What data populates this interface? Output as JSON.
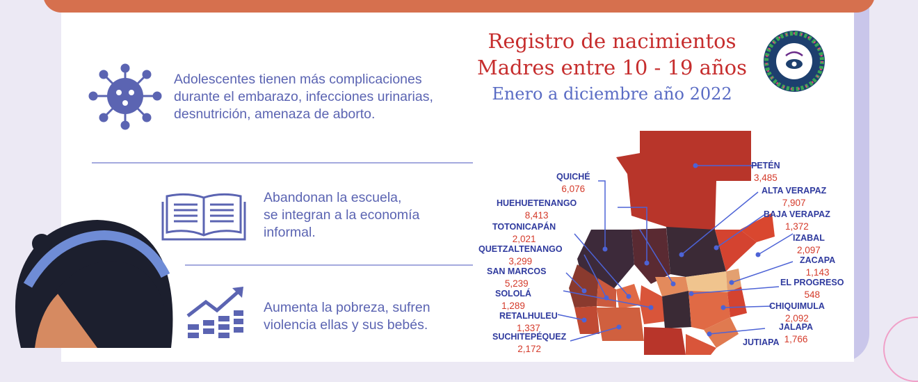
{
  "title": {
    "line1": "Registro de nacimientos",
    "line2": "Madres entre 10 - 19 años",
    "line3": "Enero a diciembre año 2022"
  },
  "logo": {
    "name": "observatorio-logo",
    "text": "Observatorio Salud Reproductiva"
  },
  "facts": [
    {
      "icon": "virus-icon",
      "text_lines": [
        "Adolescentes tienen más complicaciones",
        "durante el embarazo, infecciones urinarias,",
        "desnutrición, amenaza de aborto."
      ]
    },
    {
      "icon": "book-icon",
      "text_lines": [
        "Abandonan la escuela,",
        "se integran a la economía",
        "informal."
      ]
    },
    {
      "icon": "growth-chart-icon",
      "text_lines": [
        "Aumenta la pobreza, sufren",
        "violencia ellas y sus bebés."
      ]
    }
  ],
  "departments": [
    {
      "name": "PETÉN",
      "value": "3,485"
    },
    {
      "name": "QUICHÉ",
      "value": "6,076"
    },
    {
      "name": "ALTA VERAPAZ",
      "value": "7,907"
    },
    {
      "name": "HUEHUETENANGO",
      "value": "8,413"
    },
    {
      "name": "BAJA VERAPAZ",
      "value": "1,372"
    },
    {
      "name": "TOTONICAPÁN",
      "value": "2,021"
    },
    {
      "name": "IZABAL",
      "value": "2,097"
    },
    {
      "name": "QUETZALTENANGO",
      "value": "3,299"
    },
    {
      "name": "ZACAPA",
      "value": "1,143"
    },
    {
      "name": "SAN MARCOS",
      "value": "5,239"
    },
    {
      "name": "EL PROGRESO",
      "value": "548"
    },
    {
      "name": "SOLOLÁ",
      "value": "1,289"
    },
    {
      "name": "CHIQUIMULA",
      "value": "2,092"
    },
    {
      "name": "RETALHULEU",
      "value": "1,337"
    },
    {
      "name": "JALAPA",
      "value": "1,766"
    },
    {
      "name": "SUCHITEPÉQUEZ",
      "value": "2,172"
    },
    {
      "name": "JUTIAPA",
      "value": ""
    }
  ],
  "colors": {
    "banner": "#d6704e",
    "title_red": "#c62d2d",
    "subtitle_blue": "#5a6cc4",
    "text_blue": "#5b64b2",
    "dept_name": "#2f3a9e",
    "dept_value": "#d43a2a"
  }
}
